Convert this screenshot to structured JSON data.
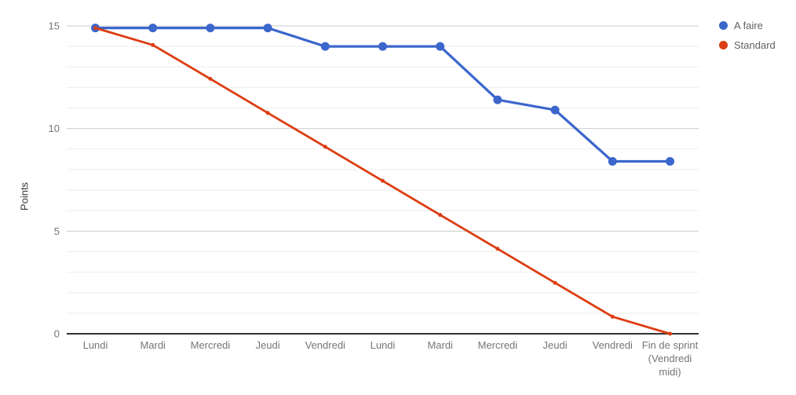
{
  "chart_data": {
    "type": "line",
    "title": "",
    "xlabel": "",
    "ylabel": "Points",
    "categories": [
      "Lundi",
      "Mardi",
      "Mercredi",
      "Jeudi",
      "Vendredi",
      "Lundi",
      "Mardi",
      "Mercredi",
      "Jeudi",
      "Vendredi",
      "Fin de sprint (Vendredi midi)"
    ],
    "category_display_lines": [
      [
        "Lundi"
      ],
      [
        "Mardi"
      ],
      [
        "Mercredi"
      ],
      [
        "Jeudi"
      ],
      [
        "Vendredi"
      ],
      [
        "Lundi"
      ],
      [
        "Mardi"
      ],
      [
        "Mercredi"
      ],
      [
        "Jeudi"
      ],
      [
        "Vendredi"
      ],
      [
        "Fin de sprint",
        "(Vendredi",
        "midi)"
      ]
    ],
    "series": [
      {
        "name": "A faire",
        "color": "#3b66cc",
        "values": [
          14.9,
          14.9,
          14.9,
          14.9,
          14,
          14,
          14,
          11.4,
          10.9,
          8.4,
          8.4
        ],
        "line_width": 3.2,
        "point_radius": 5.5
      },
      {
        "name": "Standard",
        "color": "#dc3d12",
        "values": [
          14.9,
          14.07,
          12.42,
          10.76,
          9.11,
          7.45,
          5.79,
          4.14,
          2.48,
          0.83,
          0
        ],
        "line_width": 2.8,
        "point_radius": 2.5
      }
    ],
    "ylim": [
      0,
      15
    ],
    "yticks": [
      0,
      5,
      10,
      15
    ],
    "minor_grid_step": 1,
    "grid": true,
    "legend_position": "right",
    "axis_color": "#333333",
    "major_grid_color": "#cccccc",
    "minor_grid_color": "#ededed",
    "tick_label_color": "#757575",
    "category_label_color": "#757575",
    "legend_text_color": "#616161",
    "y_axis_title_color": "#333333"
  }
}
